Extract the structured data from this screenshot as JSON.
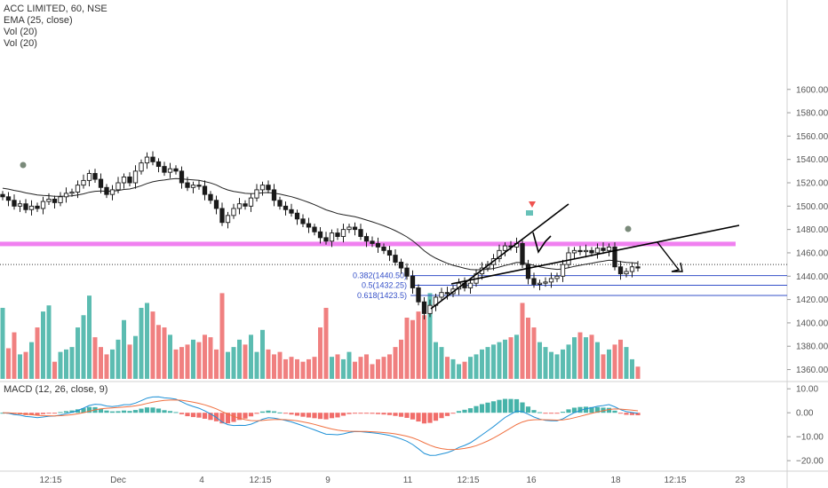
{
  "legend": {
    "symbol": "ACC LIMITED, 60, NSE",
    "ema": "EMA (25, close)",
    "vol1": "Vol (20)",
    "vol2": "Vol (20)",
    "macd": "MACD (12, 26, close, 9)"
  },
  "colors": {
    "up": "#26a69a",
    "down": "#ef5350",
    "up_vol": "#5cbcb1",
    "down_vol": "#f08080",
    "resistance": "#f080f0",
    "fib": "#3550c8",
    "macd_line": "#1e90d6",
    "signal_line": "#f07040"
  },
  "chart_data": [
    {
      "type": "candlestick",
      "title": "ACC LIMITED, 60, NSE",
      "x_tick_labels": [
        "12:15",
        "Dec",
        "4",
        "12:15",
        "9",
        "11",
        "12:15",
        "16",
        "18",
        "12:15",
        "23"
      ],
      "ylim": [
        1350,
        1620
      ],
      "y_ticks": [
        1360,
        1380,
        1400,
        1420,
        1440,
        1460,
        1480,
        1500,
        1520,
        1540,
        1560,
        1580,
        1600
      ],
      "y_tick_labels": [
        "1360.00",
        "1380.00",
        "1400.00",
        "1420.00",
        "1440.00",
        "1460.00",
        "1480.00",
        "1500.00",
        "1520.00",
        "1540.00",
        "1560.00",
        "1580.00",
        "1600.00"
      ],
      "close": [
        1508,
        1505,
        1500,
        1502,
        1497,
        1500,
        1498,
        1504,
        1506,
        1503,
        1508,
        1511,
        1512,
        1518,
        1522,
        1528,
        1523,
        1516,
        1510,
        1514,
        1520,
        1525,
        1520,
        1530,
        1537,
        1542,
        1538,
        1534,
        1529,
        1532,
        1530,
        1520,
        1516,
        1518,
        1517,
        1510,
        1505,
        1498,
        1486,
        1492,
        1498,
        1502,
        1500,
        1507,
        1514,
        1518,
        1514,
        1505,
        1500,
        1497,
        1494,
        1489,
        1485,
        1482,
        1478,
        1473,
        1470,
        1477,
        1474,
        1480,
        1482,
        1480,
        1474,
        1470,
        1468,
        1465,
        1462,
        1458,
        1452,
        1447,
        1440,
        1430,
        1418,
        1408,
        1415,
        1422,
        1426,
        1425,
        1429,
        1434,
        1430,
        1434,
        1442,
        1447,
        1450,
        1455,
        1462,
        1466,
        1465,
        1468,
        1450,
        1438,
        1433,
        1434,
        1435,
        1438,
        1440,
        1450,
        1460,
        1462,
        1461,
        1462,
        1460,
        1464,
        1462,
        1465,
        1448,
        1442,
        1444,
        1448,
        1447
      ],
      "ema_end": 1447,
      "resistance_level": 1468,
      "last_price_line": 1450,
      "fib_levels": [
        {
          "ratio": "0.382",
          "price": 1440.5,
          "label": "0.382(1440.50)"
        },
        {
          "ratio": "0.5",
          "price": 1432.25,
          "label": "0.5(1432.25)"
        },
        {
          "ratio": "0.618",
          "price": 1423.5,
          "label": "0.618(1423.5)"
        }
      ]
    },
    {
      "type": "bar",
      "title": "Vol (20)",
      "values": [
        58,
        25,
        38,
        20,
        22,
        30,
        42,
        55,
        60,
        14,
        22,
        24,
        26,
        42,
        52,
        68,
        34,
        26,
        20,
        24,
        32,
        48,
        28,
        35,
        58,
        62,
        55,
        44,
        42,
        36,
        24,
        26,
        28,
        32,
        30,
        36,
        34,
        24,
        70,
        22,
        26,
        32,
        28,
        36,
        22,
        40,
        24,
        20,
        22,
        16,
        18,
        16,
        14,
        16,
        18,
        42,
        58,
        18,
        20,
        16,
        22,
        14,
        18,
        20,
        12,
        16,
        18,
        20,
        26,
        32,
        50,
        48,
        55,
        52,
        70,
        30,
        26,
        18,
        16,
        12,
        14,
        18,
        20,
        24,
        26,
        28,
        30,
        32,
        34,
        36,
        62,
        50,
        42,
        30,
        26,
        22,
        20,
        24,
        28,
        34,
        38,
        34,
        36,
        30,
        20,
        24,
        28,
        32,
        26,
        16,
        10
      ],
      "ylim": [
        0,
        75
      ]
    },
    {
      "type": "line",
      "title": "MACD (12, 26, close, 9)",
      "series": [
        {
          "name": "MACD"
        },
        {
          "name": "Signal"
        },
        {
          "name": "Histogram"
        }
      ],
      "ylim": [
        -22,
        12
      ],
      "y_ticks": [
        10,
        0,
        -10,
        -20
      ],
      "y_tick_labels": [
        "10.00",
        "0.00",
        "−10.00",
        "−20.00"
      ]
    }
  ],
  "drawings": {
    "note": "trendlines drawn by user",
    "arrow_target": "lower fib"
  }
}
